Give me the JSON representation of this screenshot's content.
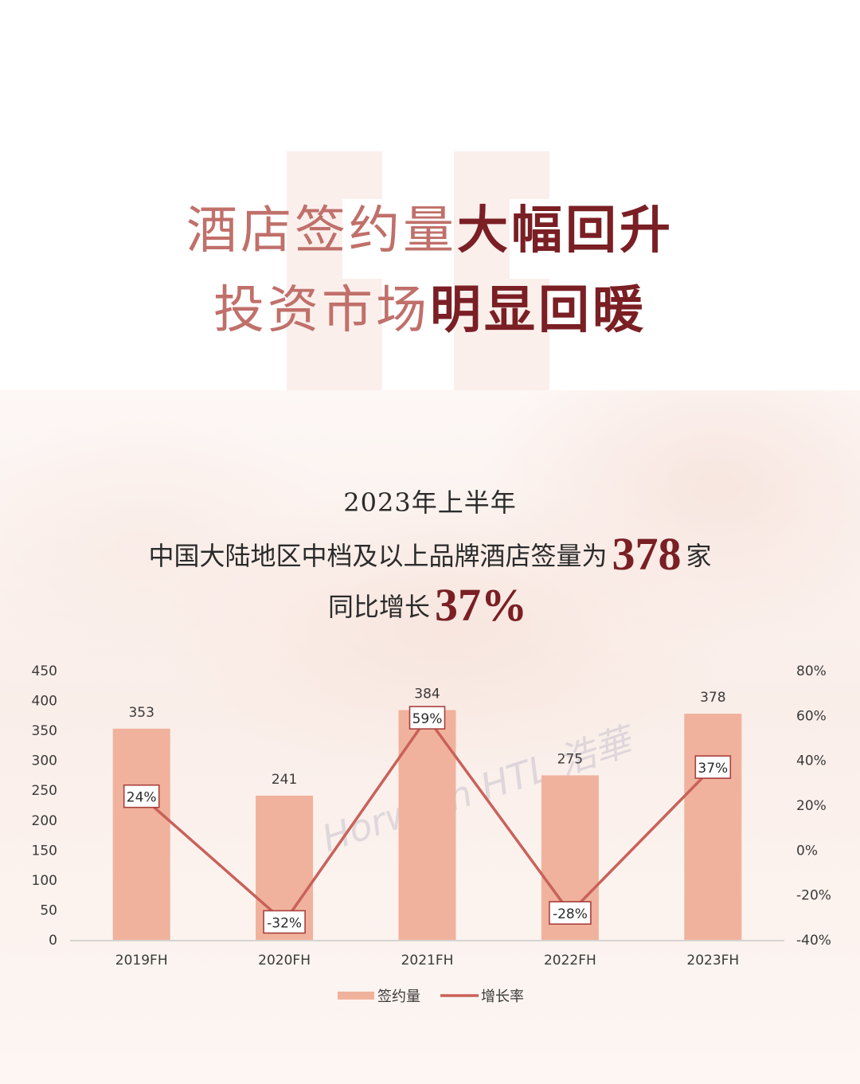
{
  "headline": {
    "line1_light": "酒店签约量",
    "line1_bold": "大幅回升",
    "line2_light": "投资市场",
    "line2_bold": "明显回暖"
  },
  "subtitle": {
    "line1": "2023年上半年",
    "line2_prefix": "中国大陆地区中档及以上品牌酒店签量为",
    "line2_number": "378",
    "line2_suffix": "家",
    "line3_prefix": "同比增长",
    "line3_number": "37%"
  },
  "watermark": "Horwath HTL 浩華",
  "colors": {
    "bar": "#f0b29c",
    "line": "#c9615a",
    "accent_dark": "#7a1f24",
    "accent_light": "#c0706a"
  },
  "chart_data": {
    "type": "bar",
    "categories": [
      "2019FH",
      "2020FH",
      "2021FH",
      "2022FH",
      "2023FH"
    ],
    "series": [
      {
        "name": "签约量",
        "type": "bar",
        "axis": "left",
        "values": [
          353,
          241,
          384,
          275,
          378
        ],
        "labels": [
          "353",
          "241",
          "384",
          "275",
          "378"
        ]
      },
      {
        "name": "增长率",
        "type": "line",
        "axis": "right",
        "values": [
          24,
          -32,
          59,
          -28,
          37
        ],
        "labels": [
          "24%",
          "-32%",
          "59%",
          "-28%",
          "37%"
        ]
      }
    ],
    "y_left": {
      "ylim": [
        0,
        450
      ],
      "ticks": [
        "0",
        "50",
        "100",
        "150",
        "200",
        "250",
        "300",
        "350",
        "400",
        "450"
      ]
    },
    "y_right": {
      "ylim": [
        -40,
        80
      ],
      "ticks": [
        "-40%",
        "-20%",
        "0%",
        "20%",
        "40%",
        "60%",
        "80%"
      ]
    },
    "legend": {
      "position": "bottom",
      "items": [
        "签约量",
        "增长率"
      ]
    },
    "grid": false
  }
}
